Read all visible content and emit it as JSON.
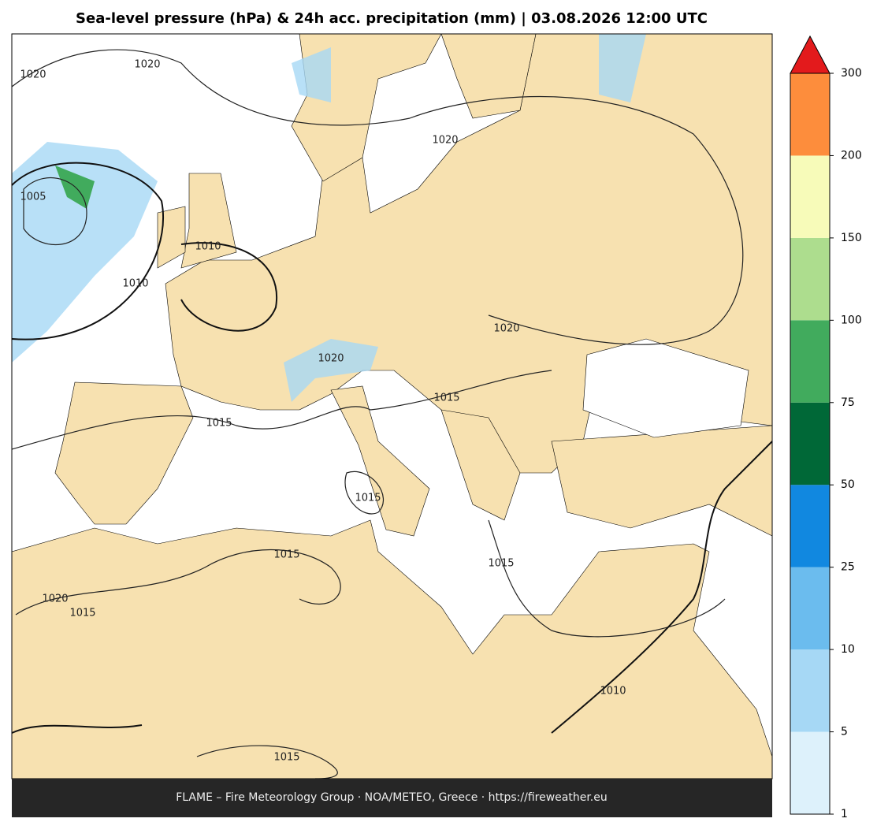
{
  "title": "Sea-level pressure (hPa) & 24h acc. precipitation (mm)  |  03.08.2026 12:00 UTC",
  "footer": "FLAME – Fire Meteorology Group · NOA/METEO, Greece · https://fireweather.eu",
  "colorbar": {
    "ticks": [
      1,
      5,
      10,
      25,
      50,
      75,
      100,
      150,
      200,
      300
    ],
    "colors": [
      "#ddf1fb",
      "#a6d8f5",
      "#6bbcee",
      "#1188e0",
      "#006837",
      "#41ab5d",
      "#addd8e",
      "#f7fbb9",
      "#fd8d3c"
    ],
    "extend_color": "#e31a1c"
  },
  "contour_labels": [
    "1020",
    "1020",
    "1005",
    "1010",
    "1010",
    "1020",
    "1020",
    "1020",
    "1015",
    "1015",
    "1015",
    "1015",
    "1015",
    "1020",
    "1015",
    "1010",
    "1015"
  ]
}
